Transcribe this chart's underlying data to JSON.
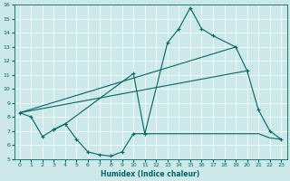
{
  "xlabel": "Humidex (Indice chaleur)",
  "xlim": [
    -0.5,
    23.5
  ],
  "ylim": [
    5,
    16
  ],
  "xticks": [
    0,
    1,
    2,
    3,
    4,
    5,
    6,
    7,
    8,
    9,
    10,
    11,
    12,
    13,
    14,
    15,
    16,
    17,
    18,
    19,
    20,
    21,
    22,
    23
  ],
  "yticks": [
    5,
    6,
    7,
    8,
    9,
    10,
    11,
    12,
    13,
    14,
    15,
    16
  ],
  "bg_color": "#cce8e8",
  "line_color": "#006666",
  "series": [
    {
      "x": [
        0,
        1,
        2,
        3,
        4,
        10,
        11,
        13,
        14,
        15,
        16,
        17,
        19,
        20,
        21,
        22,
        23
      ],
      "y": [
        8.3,
        8.0,
        6.6,
        7.1,
        7.5,
        11.1,
        6.8,
        13.3,
        14.3,
        15.8,
        14.3,
        13.8,
        13.0,
        11.3,
        8.5,
        7.0,
        6.4
      ],
      "marker": true
    },
    {
      "x": [
        3,
        4,
        5,
        6,
        7,
        8,
        9,
        10
      ],
      "y": [
        7.1,
        7.5,
        6.4,
        5.5,
        5.3,
        5.2,
        5.5,
        6.8
      ],
      "marker": true
    },
    {
      "x": [
        10,
        11,
        12,
        13,
        14,
        15,
        16,
        17,
        18,
        19,
        20,
        21,
        22,
        23
      ],
      "y": [
        6.8,
        6.8,
        6.8,
        6.8,
        6.8,
        6.8,
        6.8,
        6.8,
        6.8,
        6.8,
        6.8,
        6.8,
        6.5,
        6.4
      ],
      "marker": false
    },
    {
      "x": [
        0,
        20
      ],
      "y": [
        8.3,
        11.3
      ],
      "marker": false
    },
    {
      "x": [
        0,
        19
      ],
      "y": [
        8.3,
        13.0
      ],
      "marker": false
    }
  ]
}
